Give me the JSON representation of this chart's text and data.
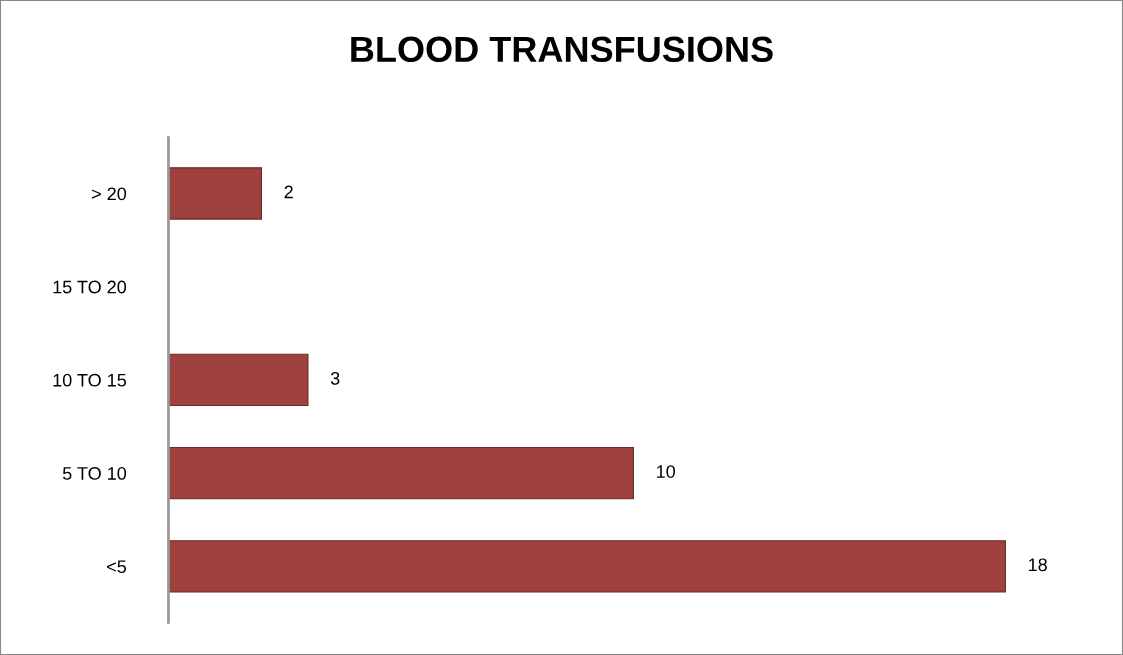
{
  "chart_data": {
    "type": "bar",
    "orientation": "horizontal",
    "title": "BLOOD TRANSFUSIONS",
    "categories": [
      "> 20",
      "15 TO 20",
      "10 TO 15",
      "5 TO 10",
      "<5"
    ],
    "values": [
      2,
      null,
      3,
      10,
      18
    ],
    "color": "#9e413f",
    "data_labels": true,
    "grid": false,
    "legend": false
  }
}
